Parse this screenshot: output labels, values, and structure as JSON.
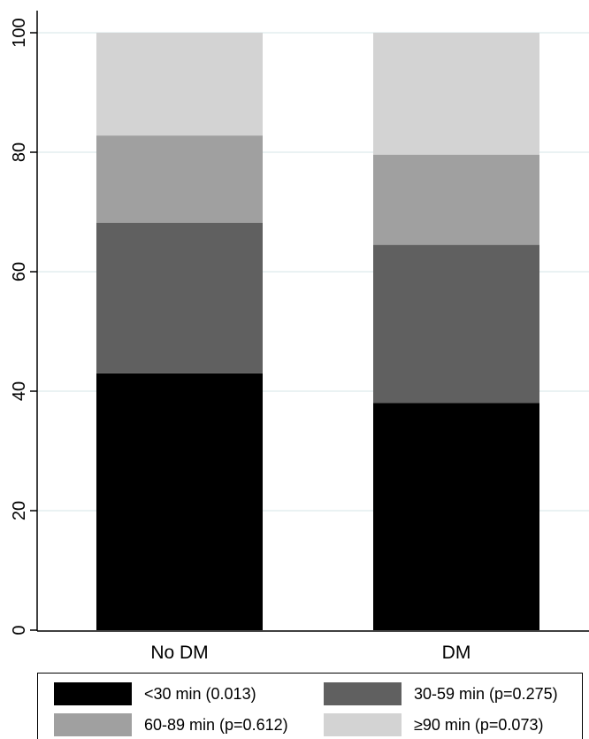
{
  "chart_data": {
    "type": "bar",
    "stacked": true,
    "categories": [
      "No DM",
      "DM"
    ],
    "series": [
      {
        "name": "<30 min (0.013)",
        "values": [
          43,
          38
        ],
        "color": "#000000"
      },
      {
        "name": "30-59 min (p=0.275)",
        "values": [
          25.2,
          26.5
        ],
        "color": "#606060"
      },
      {
        "name": "60-89 min (p=0.612)",
        "values": [
          14.6,
          15.1
        ],
        "color": "#a0a0a0"
      },
      {
        "name": "≥90 min (p=0.073)",
        "values": [
          17.2,
          20.4
        ],
        "color": "#d3d3d3"
      }
    ],
    "title": "",
    "xlabel": "",
    "ylabel": "",
    "ylim": [
      0,
      100
    ],
    "yticks": [
      "0",
      "20",
      "40",
      "60",
      "80",
      "100"
    ],
    "ytick_values": [
      0,
      20,
      40,
      60,
      80,
      100
    ],
    "grid": true,
    "grid_color": "#eaf2f3",
    "legend_position": "bottom"
  }
}
